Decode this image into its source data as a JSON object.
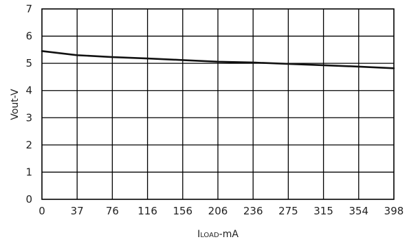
{
  "chart_data": {
    "type": "line",
    "x_ticks": [
      "0",
      "37",
      "76",
      "116",
      "156",
      "206",
      "236",
      "275",
      "315",
      "354",
      "398"
    ],
    "y_ticks": [
      "0",
      "1",
      "2",
      "3",
      "4",
      "5",
      "6",
      "7"
    ],
    "ylim": [
      0,
      7
    ],
    "grid": true,
    "xlabel_main": "I",
    "xlabel_sub": "LOAD",
    "xlabel_suffix": "-mA",
    "ylabel": "Vout-V",
    "series": [
      {
        "x": [
          0,
          37,
          76,
          116,
          156,
          206,
          236,
          275,
          315,
          354,
          398
        ],
        "y": [
          5.45,
          5.3,
          5.23,
          5.18,
          5.12,
          5.06,
          5.03,
          4.98,
          4.93,
          4.88,
          4.82
        ]
      }
    ]
  }
}
